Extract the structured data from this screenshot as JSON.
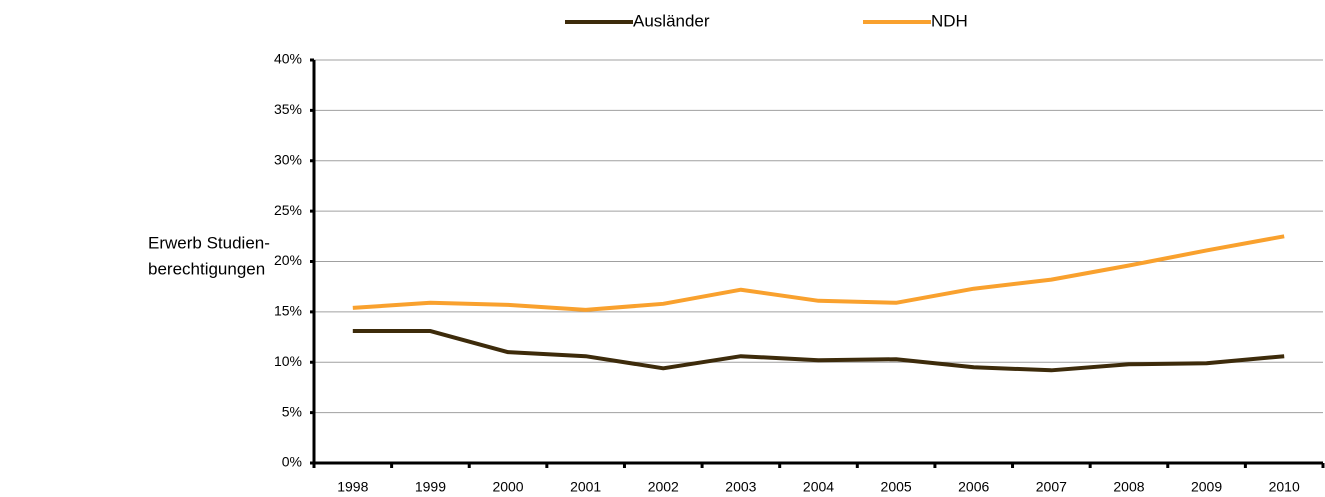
{
  "chart_data": {
    "type": "line",
    "ylabel": [
      "Erwerb Studien-",
      "berechtigungen"
    ],
    "categories": [
      "1998",
      "1999",
      "2000",
      "2001",
      "2002",
      "2003",
      "2004",
      "2005",
      "2006",
      "2007",
      "2008",
      "2009",
      "2010"
    ],
    "series": [
      {
        "name": "Ausländer",
        "color": "#3d2b0b",
        "values": [
          13.1,
          13.1,
          11.0,
          10.6,
          9.4,
          10.6,
          10.2,
          10.3,
          9.5,
          9.2,
          9.8,
          9.9,
          10.6
        ]
      },
      {
        "name": "NDH",
        "color": "#f9a12e",
        "values": [
          15.4,
          15.9,
          15.7,
          15.2,
          15.8,
          17.2,
          16.1,
          15.9,
          17.3,
          18.2,
          19.6,
          21.1,
          22.5
        ]
      }
    ],
    "ylim": [
      0,
      40
    ],
    "yticks": [
      {
        "value": 0,
        "label": "0%"
      },
      {
        "value": 5,
        "label": "5%"
      },
      {
        "value": 10,
        "label": "10%"
      },
      {
        "value": 15,
        "label": "15%"
      },
      {
        "value": 20,
        "label": "20%"
      },
      {
        "value": 25,
        "label": "25%"
      },
      {
        "value": 30,
        "label": "30%"
      },
      {
        "value": 35,
        "label": "35%"
      },
      {
        "value": 40,
        "label": "40%"
      }
    ],
    "grid": true,
    "legend": "top"
  }
}
